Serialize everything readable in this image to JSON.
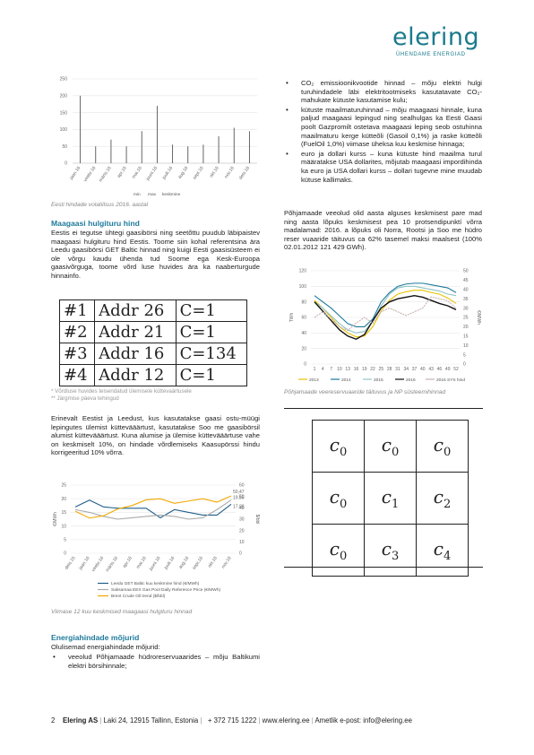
{
  "logo": {
    "word": "elering",
    "tagline": "ÜHENDAME ENERGIAD"
  },
  "colors": {
    "accent": "#1e7a9c",
    "brand": "#1a7a8c"
  },
  "volatility_chart": {
    "chart_data": {
      "type": "bar",
      "categories": [
        "jaan.16",
        "veebr.16",
        "märts.16",
        "apr.16",
        "mai.16",
        "juuni.16",
        "juuli.16",
        "aug.16",
        "sept.16",
        "okt.16",
        "nov.16",
        "dets.16"
      ],
      "series": [
        {
          "name": "max",
          "values": [
            200,
            50,
            70,
            50,
            95,
            170,
            55,
            50,
            55,
            80,
            105,
            95
          ]
        }
      ],
      "ylim": [
        0,
        250
      ],
      "yticks": [
        0,
        50,
        100,
        150,
        200,
        250
      ],
      "legend": [
        "min",
        "max",
        "keskmine"
      ]
    },
    "caption": "Eesti hindade volatiilsus 2016. aastal"
  },
  "section1": {
    "heading": "Maagaasi hulgituru hind",
    "body": "Eestis ei tegutse ühtegi gaasibörsi ning seetõttu puudub läbipaistev maagaasi hulgituru hind Eestis. Toome siin kohal referentsina ära Leedu gaasibörsi GET Baltic hinnad ning kuigi Eesti gaasisüsteem ei ole võrgu kaudu ühenda tud Soome ega Kesk-Euroopa gaasivõrguga, toome võrd luse huvides ära ka naaberturgude hinnainfo."
  },
  "addr_table": [
    [
      "#1",
      "Addr 26",
      "C=1"
    ],
    [
      "#2",
      "Addr 21",
      "C=1"
    ],
    [
      "#3",
      "Addr 16",
      "C=134"
    ],
    [
      "#4",
      "Addr 12",
      "C=1"
    ]
  ],
  "notes": [
    "* Võrdluse huvides teisendatud ülemisele küttevaärtusele",
    "** Järgmise päeva tehingud"
  ],
  "section2_body": "Erinevalt Eestist ja Leedust, kus kasutatakse gaasi ostu-müügi lepingutes ülemist küttevääärtust, kasutatakse Soo me gaasibörsil alumist küttevääärtust. Kuna alumise ja ülemise küttevääärtuse vahe on keskmiselt 10%, on hindade võrdlemiseks Kaasupörssi hindu korrigeeritud 10% võrra.",
  "gas_chart": {
    "chart_data": {
      "type": "line",
      "categories": [
        "dets.15",
        "jaan.16",
        "veebr.16",
        "märts.16",
        "apr.16",
        "mai.16",
        "juuni.16",
        "juuli.16",
        "aug.16",
        "sept.16",
        "okt.16",
        "nov.16"
      ],
      "series": [
        {
          "name": "Leedu GET Baltic kuu keskmine hind (€/MWh)",
          "color": "#1f5f8b",
          "values": [
            17,
            19.5,
            17,
            16.5,
            16.5,
            16.5,
            13,
            16,
            15,
            14,
            14,
            17.98
          ]
        },
        {
          "name": "Saksamaa EEX Gas Pool Daily Reference Price (€/MWh)",
          "color": "#aaaaaa",
          "values": [
            16,
            15,
            13.5,
            12.5,
            13,
            13.5,
            14,
            13.5,
            12.5,
            13,
            16,
            19.55
          ]
        },
        {
          "name": "Brent Crude Oil trend ($/bbl)",
          "color": "#f2a900",
          "values": [
            37,
            31,
            33,
            39,
            42,
            47,
            48,
            44,
            46,
            48,
            45,
            50.47
          ]
        }
      ],
      "ylim": [
        0,
        25
      ],
      "yticks": [
        0,
        5,
        10,
        15,
        20,
        25
      ],
      "y2lim": [
        0,
        60
      ],
      "y2ticks": [
        0,
        10,
        20,
        30,
        40,
        50,
        60
      ],
      "ylabel": "€/MWh",
      "y2label": "$/bbl",
      "annotations": [
        "50,47",
        "19,55",
        "17,98"
      ]
    },
    "caption": "Viimase 12 kuu keskmised maagaasi hulgituru hinnad"
  },
  "section3": {
    "heading": "Energiahindade mõjurid",
    "intro": "Olulisemad energiahindade mõjurid:",
    "bullet_left": "veeolud Põhjamaade hüdroreservuaarides – mõju Baltikumi elektri börsihinnale;"
  },
  "bullets_right": [
    "CO₂ emissioonikvootide hinnad – mõju elektri hulgi turuhindadele läbi elektritootmiseks kasutatavate CO₂-mahukate kütuste kasutamise kulu;",
    "kütuste maailmaturuhinnad – mõju maagaasi hinnale, kuna paljud maagaasi lepingud ning sealhulgas ka Eesti Gaasi poolt Gazpromilt ostetava maagaasi leping seob ostuhinna maailmaturu kerge kütteõli (Gasoil 0,1%) ja raske kütteõli (FuelOil 1,0%) viimase üheksa kuu keskmise hinnaga;",
    "euro ja dollari kurss – kuna kütuste hind maailma turul määratakse USA dollarites, mõjutab maagaasi impordihinda ka euro ja USA dollari kurss – dollari tugevne mine muudab kütuse kallimaks."
  ],
  "right_para": "Põhjamaade veeolud olid aasta alguses keskmisest pare mad ning aasta lõpuks keskmisest pea 10 protsendipunktí võrra madalamad: 2016. a lõpuks oli Norra, Rootsi ja Soo me hüdro reser vuaaride täituvus ca 62% tasemel maksi maalsest (100% 02.01.2012 121 429 GWh).",
  "reservoir_chart": {
    "chart_data": {
      "type": "line",
      "x": [
        1,
        4,
        7,
        10,
        13,
        16,
        19,
        22,
        25,
        28,
        31,
        34,
        37,
        40,
        43,
        46,
        49,
        52
      ],
      "series": [
        {
          "name": "2013",
          "color": "#e8c200",
          "values": [
            82,
            72,
            60,
            48,
            40,
            35,
            36,
            48,
            68,
            82,
            90,
            93,
            95,
            95,
            92,
            90,
            85,
            78
          ]
        },
        {
          "name": "2014",
          "color": "#1e7a9c",
          "values": [
            88,
            80,
            72,
            62,
            52,
            48,
            48,
            58,
            80,
            92,
            100,
            103,
            104,
            104,
            102,
            100,
            98,
            92
          ]
        },
        {
          "name": "2015",
          "color": "#8fc4c4",
          "values": [
            80,
            72,
            62,
            52,
            44,
            40,
            42,
            55,
            75,
            90,
            98,
            100,
            100,
            98,
            96,
            94,
            90,
            88
          ]
        },
        {
          "name": "2016",
          "color": "#111111",
          "values": [
            80,
            68,
            56,
            44,
            36,
            32,
            38,
            56,
            72,
            80,
            84,
            86,
            88,
            86,
            82,
            78,
            75,
            70
          ]
        },
        {
          "name": "2016 SYS hind",
          "color": "#c9b0b0",
          "values": [
            25,
            28,
            24,
            20,
            18,
            22,
            25,
            22,
            28,
            30,
            28,
            26,
            28,
            30,
            36,
            35,
            34,
            30
          ]
        }
      ],
      "ylim": [
        0,
        120
      ],
      "yticks": [
        0,
        20,
        40,
        60,
        80,
        100,
        120
      ],
      "y2lim": [
        0,
        50
      ],
      "y2ticks": [
        0,
        5,
        10,
        15,
        20,
        25,
        30,
        35,
        40,
        45,
        50
      ],
      "ylabel": "TWh",
      "y2label": "€/MWh"
    },
    "caption": "Põhjamaade veereservuaaride täituvus ja NP süsteemihinnad"
  },
  "c_grid": [
    [
      "c0",
      "c0",
      "c0"
    ],
    [
      "c0",
      "c1",
      "c2"
    ],
    [
      "c0",
      "c3",
      "c4"
    ]
  ],
  "footer": {
    "page": "2",
    "company": "Elering AS",
    "address": "Laki 24, 12915 Tallinn, Estonia",
    "phone": "+ 372 715 1222",
    "web": "www.elering.ee",
    "email": "Ametlik e-post: info@elering.ee"
  }
}
